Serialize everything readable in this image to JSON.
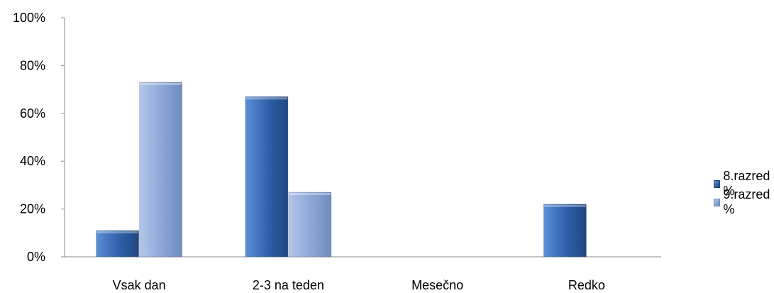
{
  "chart_data": {
    "type": "bar",
    "categories": [
      "Vsak dan",
      "2-3 na teden",
      "Mesečno",
      "Redko"
    ],
    "series": [
      {
        "name": "8.razred %",
        "values": [
          11,
          67,
          0,
          22
        ],
        "color": "#3a6fb8"
      },
      {
        "name": "9.razred %",
        "values": [
          73,
          27,
          0,
          0
        ],
        "color": "#8ea8d8"
      }
    ],
    "ylim": [
      0,
      100
    ],
    "yticks": [
      "0%",
      "20%",
      "40%",
      "60%",
      "80%",
      "100%"
    ],
    "title": "",
    "xlabel": "",
    "ylabel": "",
    "grid": false,
    "legend": "right"
  }
}
